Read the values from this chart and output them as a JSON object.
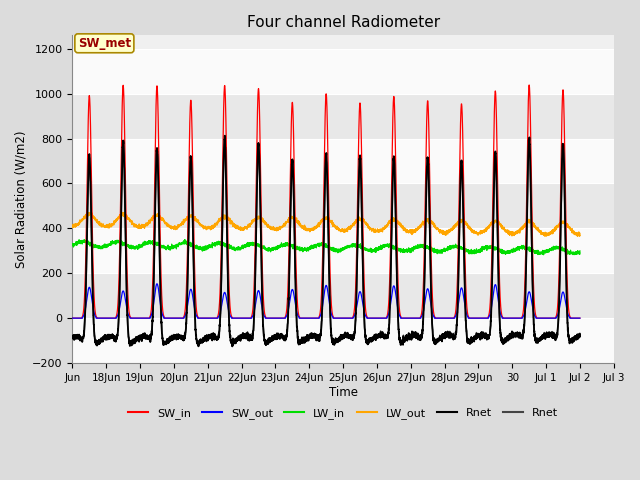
{
  "title": "Four channel Radiometer",
  "xlabel": "Time",
  "ylabel": "Solar Radiation (W/m2)",
  "ylim": [
    -200,
    1260
  ],
  "yticks": [
    -200,
    0,
    200,
    400,
    600,
    800,
    1000,
    1200
  ],
  "n_days": 15,
  "points_per_day": 288,
  "colors": {
    "SW_in": "#FF0000",
    "SW_out": "#0000FF",
    "LW_in": "#00DD00",
    "LW_out": "#FFA500",
    "Rnet": "#000000",
    "Rnet2": "#444444"
  },
  "bg_color": "#DCDCDC",
  "plot_bg": "#F0F0F0",
  "band_color1": "#E8E8E8",
  "band_color2": "#FAFAFA",
  "grid_color": "#FFFFFF",
  "annotation_text": "SW_met",
  "annotation_bg": "#FFFFCC",
  "annotation_border": "#AA8800",
  "xtick_labels": [
    "Jun",
    "18Jun",
    "19Jun",
    "20Jun",
    "21Jun",
    "22Jun",
    "23Jun",
    "24Jun",
    "25Jun",
    "26Jun",
    "27Jun",
    "28Jun",
    "29Jun",
    "30",
    "Jul 1",
    "Jul 2",
    "Jul 3"
  ],
  "linewidth": 0.9,
  "figwidth": 6.4,
  "figheight": 4.8,
  "dpi": 100
}
